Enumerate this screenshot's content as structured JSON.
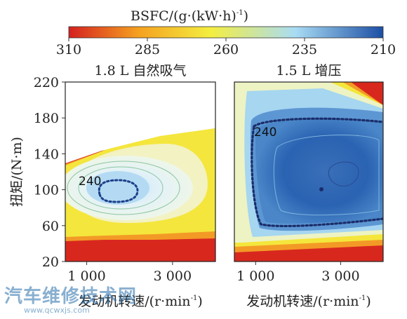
{
  "chart_data": {
    "type": "heatmap",
    "colorbar": {
      "title": "BSFC/(g·(kW·h)",
      "title_sup": "-1",
      "title_tail": ")",
      "ticks": [
        "310",
        "285",
        "260",
        "235",
        "210"
      ],
      "values": [
        310,
        285,
        260,
        235,
        210
      ],
      "colors": [
        "#d42020",
        "#f5a020",
        "#f4ee40",
        "#a9dcf4",
        "#1c4fa4"
      ]
    },
    "ylabel": "扭矩/(N·m)",
    "yticks": [
      "220",
      "180",
      "140",
      "100",
      "60",
      "20"
    ],
    "yvalues": [
      220,
      180,
      140,
      100,
      60,
      20
    ],
    "ylim": [
      20,
      220
    ],
    "xlim": [
      500,
      4000
    ],
    "panels": [
      {
        "title": "1.8 L 自然吸气",
        "xlabel": "发动机转速",
        "xlabel_unit": "/(r·min",
        "xlabel_sup": "-1",
        "xlabel_close": ")",
        "xticks": [
          "1 000",
          "3 000"
        ],
        "xvalues": [
          1000,
          3000
        ],
        "contour_label": "240",
        "contour_label_rpm": 1180,
        "contour_label_nm": 104,
        "min_bsfc": 232,
        "min_point_rpm": 1950,
        "min_point_nm": 100
      },
      {
        "title": "1.5 L 增压",
        "xlabel": "发动机转速",
        "xlabel_unit": "/(r·min",
        "xlabel_sup": "-1",
        "xlabel_close": ")",
        "xticks": [
          "1 000",
          "3 000"
        ],
        "xvalues": [
          1000,
          3000
        ],
        "contour_label": "240",
        "contour_label_rpm": 1000,
        "contour_label_nm": 170,
        "min_bsfc": 222,
        "min_point_rpm": 2850,
        "min_point_nm": 118
      }
    ]
  },
  "watermark": {
    "text": "汽车维修技术网",
    "url": "www.qcwxjs.com"
  }
}
